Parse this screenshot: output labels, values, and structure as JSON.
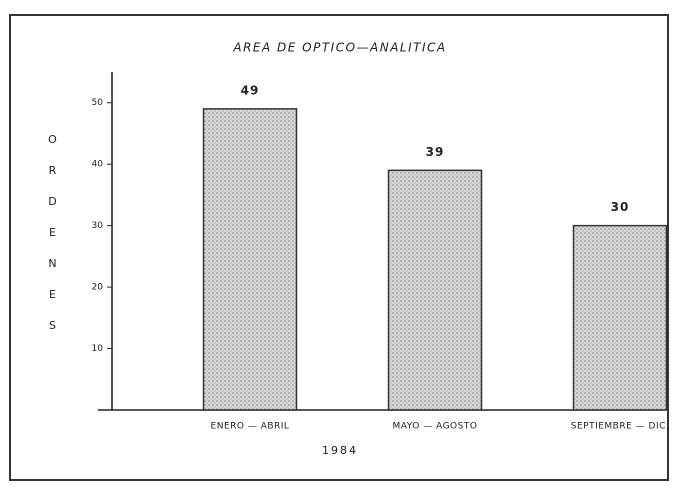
{
  "chart_data": {
    "type": "bar",
    "title": "AREA DE OPTICO—ANALITICA",
    "y_label": "ORDENES",
    "x_label": "1984",
    "categories": [
      "ENERO — ABRIL",
      "MAYO — AGOSTO",
      "SEPTIEMBRE — DIC."
    ],
    "values": [
      49,
      39,
      30
    ],
    "color": "#c9c9c9",
    "ylim": [
      0,
      55
    ],
    "yticks": [
      10,
      20,
      30,
      40,
      50
    ]
  }
}
